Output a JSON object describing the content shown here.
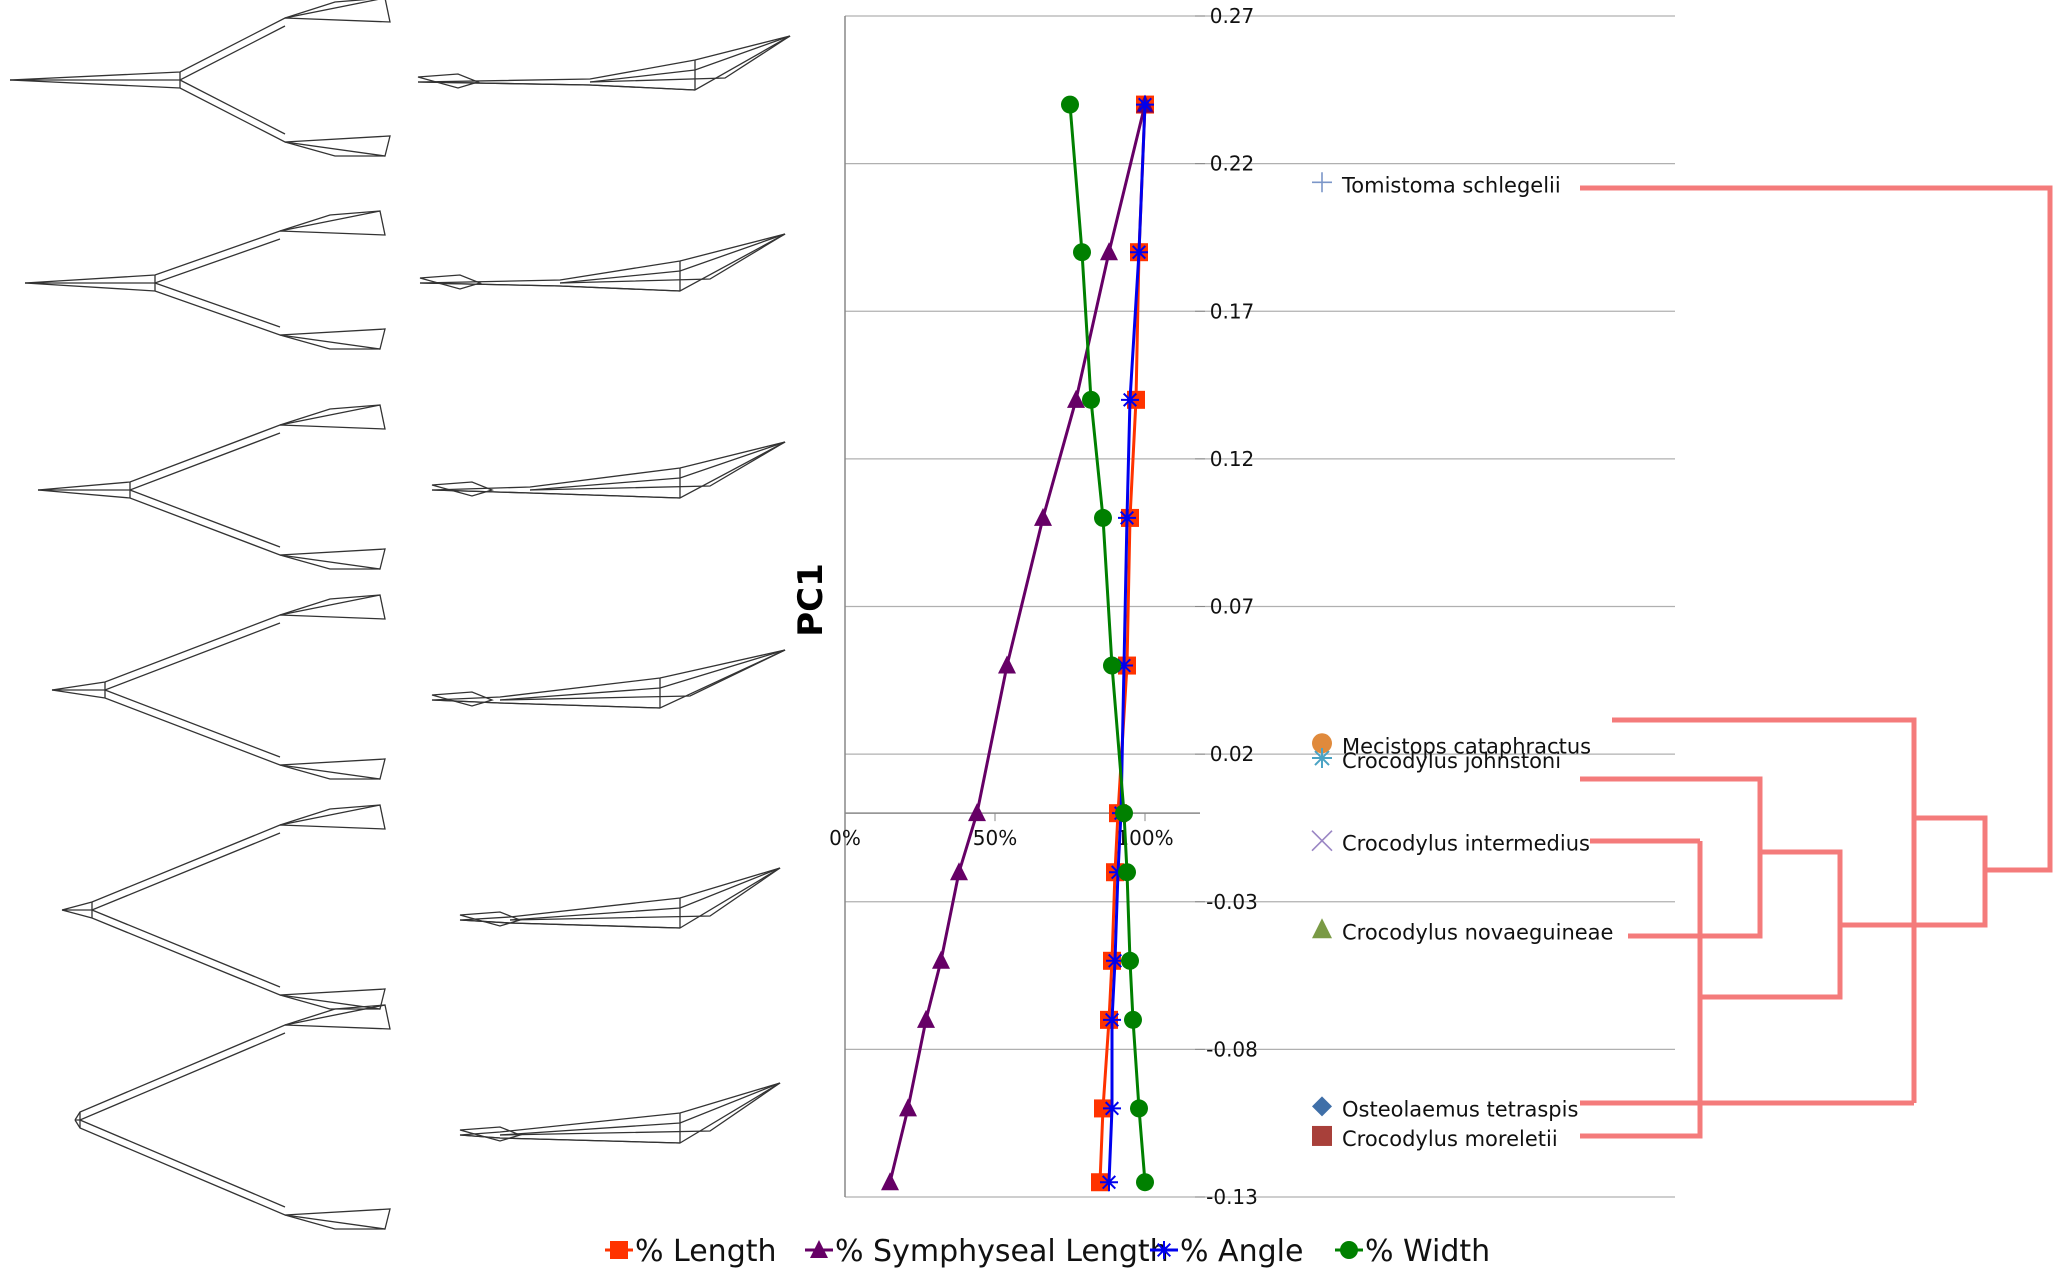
{
  "chart_data": {
    "type": "line",
    "ylabel": "PC1",
    "y_ticks": [
      "0.27",
      "0.22",
      "0.17",
      "0.12",
      "0.07",
      "0.02",
      "-0.03",
      "-0.08",
      "-0.13"
    ],
    "y_tick_values": [
      0.27,
      0.22,
      0.17,
      0.12,
      0.07,
      0.02,
      -0.03,
      -0.08,
      -0.13
    ],
    "ylim": [
      -0.13,
      0.27
    ],
    "x_ticks": [
      "0%",
      "50%",
      "100%"
    ],
    "x_tick_values": [
      0,
      50,
      100
    ],
    "xlim": [
      0,
      120
    ],
    "grid": "horizontal",
    "legend_position": "bottom",
    "series": [
      {
        "name": "% Length",
        "color": "#ff3300",
        "marker": "square",
        "y": [
          0.24,
          0.19,
          0.14,
          0.1,
          0.05,
          0.0,
          -0.02,
          -0.05,
          -0.07,
          -0.1,
          -0.125
        ],
        "x": [
          100,
          98,
          97,
          95,
          94,
          91,
          90,
          89,
          88,
          86,
          85
        ]
      },
      {
        "name": "% Symphyseal Length",
        "color": "#660066",
        "marker": "triangle",
        "y": [
          0.24,
          0.19,
          0.14,
          0.1,
          0.05,
          0.0,
          -0.02,
          -0.05,
          -0.07,
          -0.1,
          -0.125
        ],
        "x": [
          100,
          88,
          77,
          66,
          54,
          44,
          38,
          32,
          27,
          21,
          15
        ]
      },
      {
        "name": "% Angle",
        "color": "#0000ee",
        "marker": "asterisk",
        "y": [
          0.24,
          0.19,
          0.14,
          0.1,
          0.05,
          0.0,
          -0.02,
          -0.05,
          -0.07,
          -0.1,
          -0.125
        ],
        "x": [
          100,
          98,
          95,
          94,
          93,
          92,
          91,
          90,
          89,
          89,
          88
        ]
      },
      {
        "name": "% Width",
        "color": "#008000",
        "marker": "circle",
        "y": [
          0.24,
          0.19,
          0.14,
          0.1,
          0.05,
          0.0,
          -0.02,
          -0.05,
          -0.07,
          -0.1,
          -0.125
        ],
        "x": [
          75,
          79,
          82,
          86,
          89,
          93,
          94,
          95,
          96,
          98,
          100
        ]
      }
    ],
    "species": [
      {
        "name": "Tomistoma schlegelii",
        "pc1": 0.213,
        "marker": "plus",
        "color": "#7b96c8"
      },
      {
        "name": "Mecistops cataphractus",
        "pc1": 0.023,
        "marker": "circle",
        "color": "#e08a3c"
      },
      {
        "name": "Crocodylus johnstoni",
        "pc1": 0.018,
        "marker": "asterisk",
        "color": "#4aa3c4"
      },
      {
        "name": "Crocodylus intermedius",
        "pc1": -0.01,
        "marker": "cross",
        "color": "#9a86c4"
      },
      {
        "name": "Crocodylus novaeguineae",
        "pc1": -0.04,
        "marker": "triangle",
        "color": "#7a9a45"
      },
      {
        "name": "Osteolaemus tetraspis",
        "pc1": -0.1,
        "marker": "diamond",
        "color": "#3f6fa8"
      },
      {
        "name": "Crocodylus moreletii",
        "pc1": -0.11,
        "marker": "square",
        "color": "#a8403a"
      }
    ],
    "tree_color": "#f47b7b"
  }
}
